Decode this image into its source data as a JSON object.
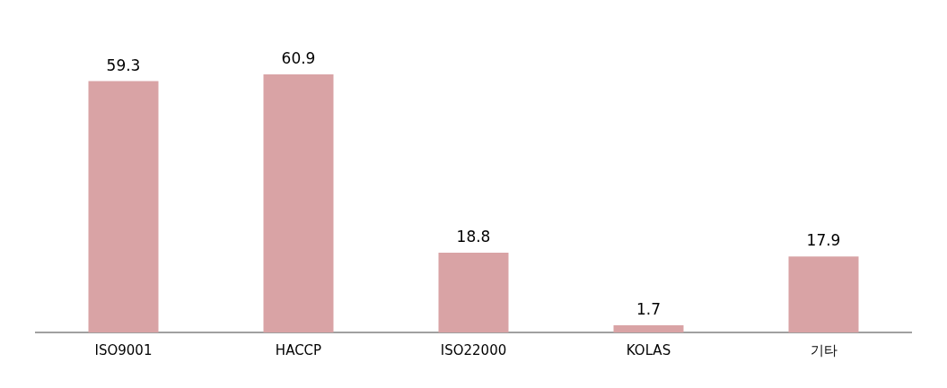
{
  "chart_data": {
    "type": "bar",
    "categories": [
      "ISO9001",
      "HACCP",
      "ISO22000",
      "KOLAS",
      "기타"
    ],
    "values": [
      59.3,
      60.9,
      18.8,
      1.7,
      17.9
    ],
    "color": "#d9a3a5",
    "data_labels": true,
    "grid": false,
    "legend": false,
    "tick_labels": "x"
  }
}
